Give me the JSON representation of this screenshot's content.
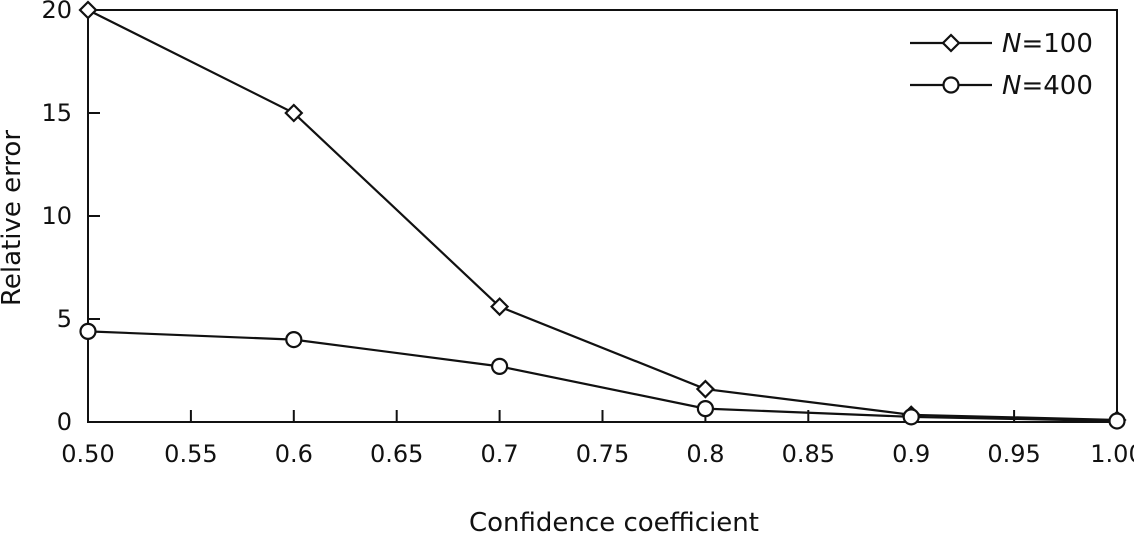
{
  "chart_data": {
    "type": "line",
    "title": "",
    "xlabel": "Confidence coefficient",
    "ylabel": "Relative error",
    "xlim": [
      0.5,
      1.0
    ],
    "ylim": [
      0,
      20
    ],
    "x_ticks": [
      "0.50",
      "0.55",
      "0.6",
      "0.65",
      "0.7",
      "0.75",
      "0.8",
      "0.85",
      "0.9",
      "0.95",
      "1.00"
    ],
    "y_ticks": [
      "0",
      "5",
      "10",
      "15",
      "20"
    ],
    "grid": false,
    "legend_position": "top-right",
    "series": [
      {
        "name": "N=100",
        "name_prefix": "N",
        "name_suffix": "=100",
        "marker": "diamond",
        "color": "#111111",
        "x": [
          0.5,
          0.6,
          0.7,
          0.8,
          0.9,
          1.0
        ],
        "values": [
          20.0,
          15.0,
          5.6,
          1.6,
          0.35,
          0.1
        ]
      },
      {
        "name": "N=400",
        "name_prefix": "N",
        "name_suffix": "=400",
        "marker": "circle",
        "color": "#111111",
        "x": [
          0.5,
          0.6,
          0.7,
          0.8,
          0.9,
          1.0
        ],
        "values": [
          4.4,
          4.0,
          2.7,
          0.65,
          0.25,
          0.05
        ]
      }
    ]
  }
}
